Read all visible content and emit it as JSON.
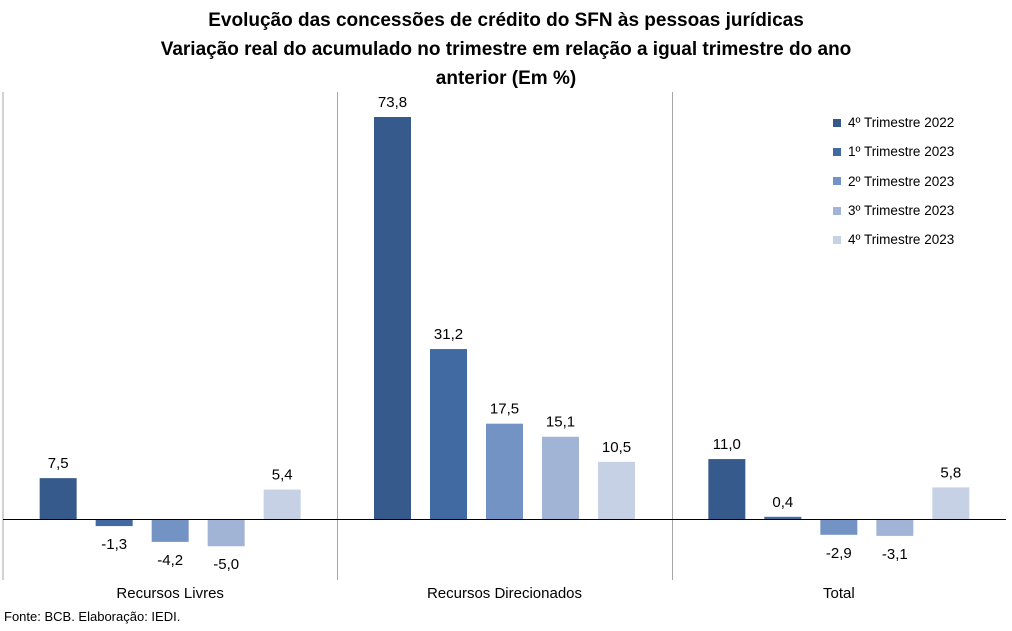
{
  "title": {
    "line1": "Evolução das concessões de crédito do SFN às pessoas jurídicas",
    "line2": "Variação real do acumulado no trimestre em relação a igual trimestre do ano",
    "line3": "anterior (Em %)"
  },
  "source": "Fonte: BCB. Elaboração: IEDI.",
  "chart_data": {
    "type": "bar",
    "categories": [
      "Recursos Livres",
      "Recursos Direcionados",
      "Total"
    ],
    "series": [
      {
        "name": "4º Trimestre 2022",
        "color": "#375A8C",
        "values": [
          7.5,
          73.8,
          11.0
        ],
        "labels": [
          "7,5",
          "73,8",
          "11,0"
        ]
      },
      {
        "name": "1º Trimestre 2023",
        "color": "#4169A2",
        "values": [
          -1.3,
          31.2,
          0.4
        ],
        "labels": [
          "-1,3",
          "31,2",
          "0,4"
        ]
      },
      {
        "name": "2º Trimestre 2023",
        "color": "#7393C5",
        "values": [
          -4.2,
          17.5,
          -2.9
        ],
        "labels": [
          "-4,2",
          "17,5",
          "-2,9"
        ]
      },
      {
        "name": "3º Trimestre 2023",
        "color": "#A1B4D6",
        "values": [
          -5.0,
          15.1,
          -3.1
        ],
        "labels": [
          "-5,0",
          "15,1",
          "-3,1"
        ]
      },
      {
        "name": "4º Trimestre 2023",
        "color": "#C6D1E5",
        "values": [
          5.4,
          10.5,
          5.8
        ],
        "labels": [
          "5,4",
          "10,5",
          "5,8"
        ]
      }
    ],
    "ylim": [
      -10,
      75
    ],
    "legend_position": "top-right",
    "grid": false
  }
}
